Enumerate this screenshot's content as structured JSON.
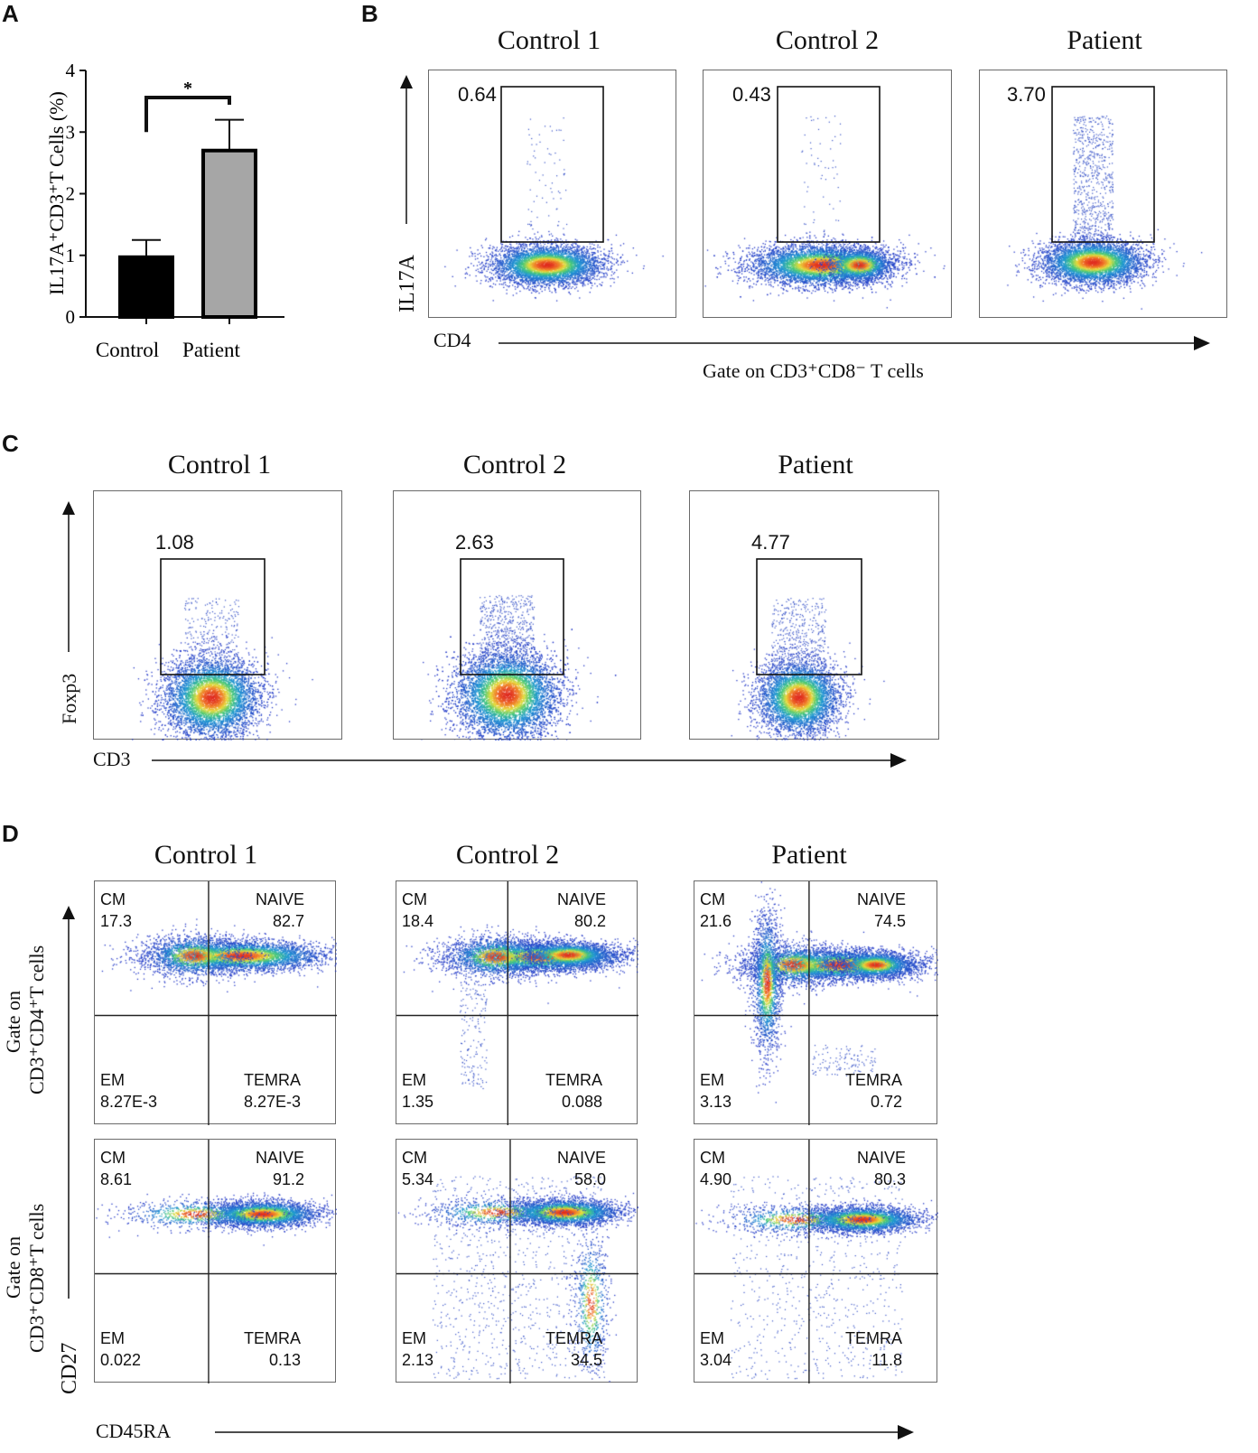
{
  "panel_letters": {
    "a": "A",
    "b": "B",
    "c": "C",
    "d": "D"
  },
  "chart_data": [
    {
      "id": "A",
      "type": "bar",
      "categories": [
        "Control",
        "Patient"
      ],
      "values": [
        0.97,
        2.7
      ],
      "errors": [
        0.28,
        0.5
      ],
      "bar_colors": [
        "#000000",
        "#a6a6a6"
      ],
      "ylabel": "IL17A⁺CD3⁺T Cells (%)",
      "ylim": [
        0,
        4
      ],
      "yticks": [
        "0",
        "1",
        "2",
        "3",
        "4"
      ],
      "significance": "*"
    },
    {
      "id": "B",
      "type": "scatter",
      "plot_kind": "flow-cytometry-gate",
      "xlabel": "CD4",
      "ylabel": "IL17A",
      "footer": "Gate on CD3⁺CD8⁻ T cells",
      "panels": [
        {
          "title": "Control 1",
          "gate_value": "0.64"
        },
        {
          "title": "Control 2",
          "gate_value": "0.43"
        },
        {
          "title": "Patient",
          "gate_value": "3.70"
        }
      ]
    },
    {
      "id": "C",
      "type": "scatter",
      "plot_kind": "flow-cytometry-gate",
      "xlabel": "CD3",
      "ylabel": "Foxp3",
      "panels": [
        {
          "title": "Control 1",
          "gate_value": "1.08"
        },
        {
          "title": "Control 2",
          "gate_value": "2.63"
        },
        {
          "title": "Patient",
          "gate_value": "4.77"
        }
      ]
    },
    {
      "id": "D",
      "type": "scatter",
      "plot_kind": "flow-cytometry-quadrant",
      "xlabel": "CD45RA",
      "ylabel": "CD27",
      "row_labels": [
        {
          "line1": "Gate on",
          "line2": "CD3⁺CD4⁺T cells"
        },
        {
          "line1": "Gate on",
          "line2": "CD3⁺CD8⁺T cells"
        }
      ],
      "column_titles": [
        "Control 1",
        "Control 2",
        "Patient"
      ],
      "quadrant_names": {
        "tl": "CM",
        "tr": "NAIVE",
        "bl": "EM",
        "br": "TEMRA"
      },
      "rows": [
        [
          {
            "CM": "17.3",
            "NAIVE": "82.7",
            "EM": "8.27E-3",
            "TEMRA": "8.27E-3"
          },
          {
            "CM": "18.4",
            "NAIVE": "80.2",
            "EM": "1.35",
            "TEMRA": "0.088"
          },
          {
            "CM": "21.6",
            "NAIVE": "74.5",
            "EM": "3.13",
            "TEMRA": "0.72"
          }
        ],
        [
          {
            "CM": "8.61",
            "NAIVE": "91.2",
            "EM": "0.022",
            "TEMRA": "0.13"
          },
          {
            "CM": "5.34",
            "NAIVE": "58.0",
            "EM": "2.13",
            "TEMRA": "34.5"
          },
          {
            "CM": "4.90",
            "NAIVE": "80.3",
            "EM": "3.04",
            "TEMRA": "11.8"
          }
        ]
      ]
    }
  ]
}
